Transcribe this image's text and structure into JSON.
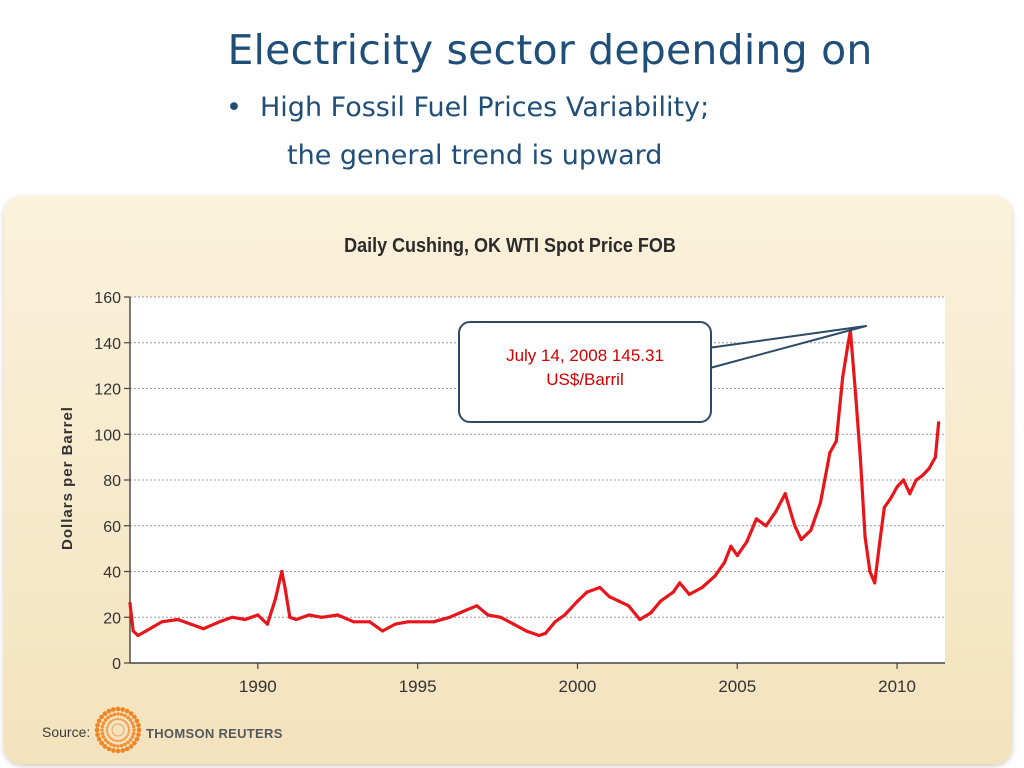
{
  "slide": {
    "title": "Electricity sector depending on",
    "bullet_symbol": "•",
    "bullet_text": "High Fossil Fuel Prices Variability;",
    "bullet_cont": "the general trend is upward"
  },
  "source_label": "Source:",
  "brand": "THOMSON REUTERS",
  "callout": {
    "line1": "July 14, 2008 145.31",
    "line2": "US$/Barril"
  },
  "colors": {
    "title_blue": "#1f4e79",
    "series_red": "#e8161b",
    "panel_bg": "#f7ead0",
    "callout_text": "#d00000",
    "callout_border": "#2a4a66"
  },
  "chart_data": {
    "type": "line",
    "title": "Daily Cushing, OK WTI Spot Price FOB",
    "xlabel": "",
    "ylabel": "Dollars per Barrel",
    "xlim": [
      1986.0,
      2011.5
    ],
    "ylim": [
      0,
      160
    ],
    "yticks": [
      0,
      20,
      40,
      60,
      80,
      100,
      120,
      140,
      160
    ],
    "xticks": [
      1990,
      1995,
      2000,
      2005,
      2010
    ],
    "grid": "horizontal dashed",
    "annotation": {
      "x": 2008.54,
      "y": 145.31
    },
    "series": [
      {
        "name": "",
        "color": "#e8161b",
        "x": [
          1986.0,
          1986.1,
          1986.25,
          1986.5,
          1986.75,
          1987.0,
          1987.5,
          1987.9,
          1988.3,
          1988.8,
          1989.2,
          1989.6,
          1990.0,
          1990.3,
          1990.55,
          1990.75,
          1990.85,
          1991.0,
          1991.2,
          1991.6,
          1992.0,
          1992.5,
          1993.0,
          1993.5,
          1993.9,
          1994.3,
          1994.7,
          1995.0,
          1995.5,
          1996.0,
          1996.5,
          1996.85,
          1997.2,
          1997.6,
          1998.0,
          1998.4,
          1998.8,
          1999.0,
          1999.3,
          1999.6,
          2000.0,
          2000.3,
          2000.7,
          2001.0,
          2001.3,
          2001.6,
          2001.95,
          2002.3,
          2002.6,
          2003.0,
          2003.2,
          2003.5,
          2003.9,
          2004.3,
          2004.6,
          2004.8,
          2005.0,
          2005.3,
          2005.6,
          2005.9,
          2006.2,
          2006.5,
          2006.8,
          2007.0,
          2007.3,
          2007.6,
          2007.9,
          2008.1,
          2008.3,
          2008.45,
          2008.54,
          2008.7,
          2008.85,
          2009.0,
          2009.15,
          2009.3,
          2009.45,
          2009.6,
          2009.8,
          2010.0,
          2010.2,
          2010.4,
          2010.6,
          2010.8,
          2011.0,
          2011.2,
          2011.3
        ],
        "y": [
          26,
          14,
          12,
          14,
          16,
          18,
          19,
          17,
          15,
          18,
          20,
          19,
          21,
          17,
          28,
          40,
          33,
          20,
          19,
          21,
          20,
          21,
          18,
          18,
          14,
          17,
          18,
          18,
          18,
          20,
          23,
          25,
          21,
          20,
          17,
          14,
          12,
          13,
          18,
          21,
          27,
          31,
          33,
          29,
          27,
          25,
          19,
          22,
          27,
          31,
          35,
          30,
          33,
          38,
          44,
          51,
          47,
          53,
          63,
          60,
          66,
          74,
          60,
          54,
          58,
          70,
          92,
          97,
          125,
          138,
          145.31,
          118,
          90,
          55,
          40,
          35,
          52,
          68,
          72,
          77,
          80,
          74,
          80,
          82,
          85,
          90,
          105
        ]
      }
    ]
  }
}
